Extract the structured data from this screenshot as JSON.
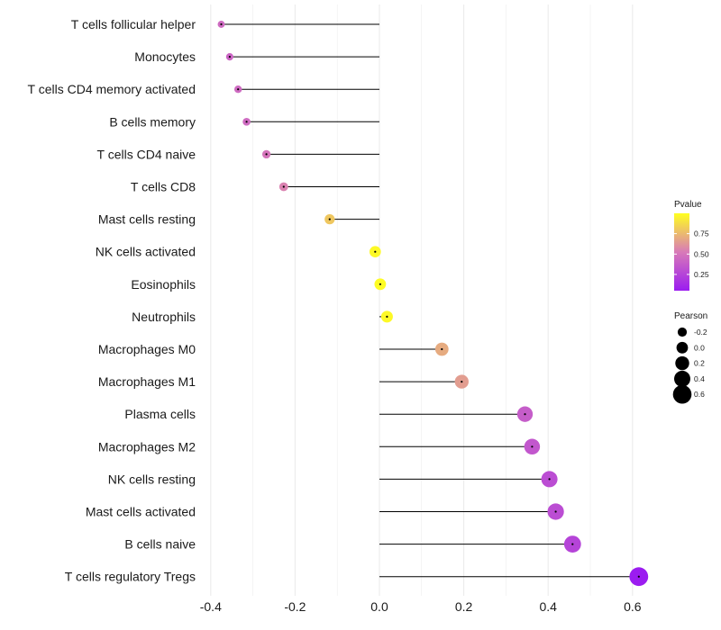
{
  "chart_data": {
    "type": "lollipop",
    "categories": [
      "T cells follicular helper",
      "Monocytes",
      "T cells CD4 memory activated",
      "B cells memory",
      "T cells CD4 naive",
      "T cells CD8",
      "Mast cells resting",
      "NK cells activated",
      "Eosinophils",
      "Neutrophils",
      "Macrophages M0",
      "Macrophages M1",
      "Plasma cells",
      "Macrophages M2",
      "NK cells resting",
      "Mast cells activated",
      "B cells naive",
      "T cells regulatory  Tregs"
    ],
    "values": [
      -0.375,
      -0.355,
      -0.335,
      -0.315,
      -0.268,
      -0.227,
      -0.118,
      -0.01,
      0.002,
      0.018,
      0.148,
      0.195,
      0.345,
      0.362,
      0.403,
      0.418,
      0.458,
      0.615
    ],
    "pvalues": [
      0.45,
      0.42,
      0.45,
      0.45,
      0.5,
      0.55,
      0.8,
      0.98,
      0.99,
      0.98,
      0.7,
      0.65,
      0.38,
      0.35,
      0.3,
      0.3,
      0.25,
      0.05
    ],
    "xlim": [
      -0.45,
      0.65
    ],
    "xticks": [
      "-0.4",
      "-0.2",
      "0.0",
      "0.2",
      "0.4",
      "0.6"
    ],
    "xtick_values": [
      -0.4,
      -0.2,
      0.0,
      0.2,
      0.4,
      0.6
    ],
    "legend_color": {
      "title": "Pvalue",
      "ticks": [
        "0.75",
        "0.50",
        "0.25"
      ],
      "tick_values": [
        0.75,
        0.5,
        0.25
      ],
      "range": [
        0.05,
        1.0
      ],
      "low_color": "#9b1cf0",
      "mid_color": "#d87ab8",
      "high_color": "#ffff20"
    },
    "legend_size": {
      "title": "Pearson",
      "labels": [
        "-0.2",
        "0.0",
        "0.2",
        "0.4",
        "0.6"
      ],
      "values": [
        -0.2,
        0.0,
        0.2,
        0.4,
        0.6
      ]
    },
    "colors": {
      "stem": "#000000",
      "grid": "#ebebeb",
      "dot_center": "#000000"
    }
  }
}
